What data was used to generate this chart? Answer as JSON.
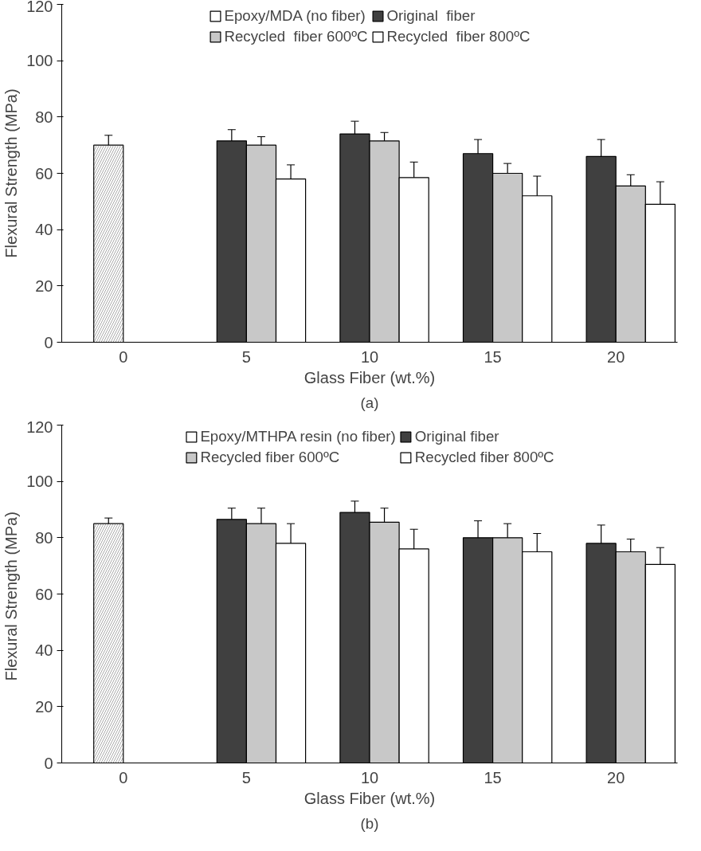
{
  "chart_data": [
    {
      "type": "bar",
      "xlabel": "Glass Fiber (wt.%)",
      "ylabel": "Flexural Strength (MPa)",
      "categories": [
        "0",
        "5",
        "10",
        "15",
        "20"
      ],
      "ylim": [
        0,
        120
      ],
      "yticks": [
        0,
        20,
        40,
        60,
        80,
        100,
        120
      ],
      "grid": false,
      "legend": "top",
      "annotations": [
        "(a)"
      ],
      "series": [
        {
          "name": "Epoxy/MDA (no fiber)",
          "color": "#ffffff",
          "values": [
            70,
            null,
            null,
            null,
            null
          ],
          "errors": [
            3.5,
            null,
            null,
            null,
            null
          ]
        },
        {
          "name": "Original  fiber",
          "color": "#404040",
          "values": [
            null,
            71.5,
            74,
            67,
            66
          ],
          "errors": [
            null,
            4,
            4.5,
            5,
            6
          ]
        },
        {
          "name": "Recycled  fiber 600ºC",
          "color": "#c8c8c8",
          "values": [
            null,
            70,
            71.5,
            60,
            55.5
          ],
          "errors": [
            null,
            3,
            3,
            3.5,
            4
          ]
        },
        {
          "name": "Recycled  fiber 800ºC",
          "color": "#ffffff",
          "values": [
            null,
            58,
            58.5,
            52,
            49
          ],
          "errors": [
            null,
            5,
            5.5,
            7,
            8
          ]
        }
      ]
    },
    {
      "type": "bar",
      "xlabel": "Glass Fiber (wt.%)",
      "ylabel": "Flexural Strength  (MPa)",
      "categories": [
        "0",
        "5",
        "10",
        "15",
        "20"
      ],
      "ylim": [
        0,
        120
      ],
      "yticks": [
        0,
        20,
        40,
        60,
        80,
        100,
        120
      ],
      "grid": false,
      "legend": "top",
      "annotations": [
        "(b)"
      ],
      "series": [
        {
          "name": "Epoxy/MTHPA resin (no fiber)",
          "color": "#ffffff",
          "values": [
            85,
            null,
            null,
            null,
            null
          ],
          "errors": [
            2,
            null,
            null,
            null,
            null
          ]
        },
        {
          "name": "Original fiber",
          "color": "#404040",
          "values": [
            null,
            86.5,
            89,
            80,
            78
          ],
          "errors": [
            null,
            4,
            4,
            6,
            6.5
          ]
        },
        {
          "name": "Recycled fiber 600ºC",
          "color": "#c8c8c8",
          "values": [
            null,
            85,
            85.5,
            80,
            75
          ],
          "errors": [
            null,
            5.5,
            5,
            5,
            4.5
          ]
        },
        {
          "name": "Recycled fiber 800ºC",
          "color": "#ffffff",
          "values": [
            null,
            78,
            76,
            75,
            70.5
          ],
          "errors": [
            null,
            7,
            7,
            6.5,
            6
          ]
        }
      ]
    }
  ]
}
